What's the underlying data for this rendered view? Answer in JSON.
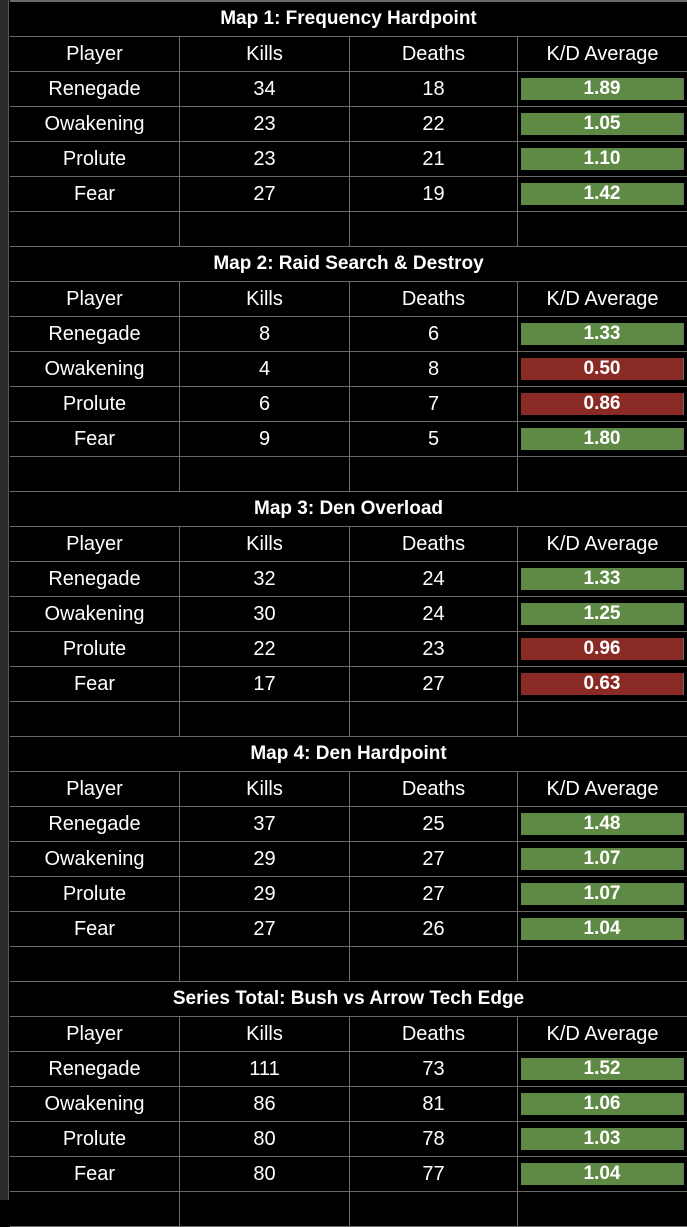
{
  "colors": {
    "good": "#5f8a45",
    "bad": "#8a2a24",
    "background": "#000000",
    "grid": "#6a6a6a"
  },
  "headers": {
    "player": "Player",
    "kills": "Kills",
    "deaths": "Deaths",
    "kd": "K/D Average"
  },
  "maps": [
    {
      "title": "Map 1: Frequency Hardpoint",
      "rows": [
        {
          "player": "Renegade",
          "kills": "34",
          "deaths": "18",
          "kd": "1.89",
          "status": "good"
        },
        {
          "player": "Owakening",
          "kills": "23",
          "deaths": "22",
          "kd": "1.05",
          "status": "good"
        },
        {
          "player": "Prolute",
          "kills": "23",
          "deaths": "21",
          "kd": "1.10",
          "status": "good"
        },
        {
          "player": "Fear",
          "kills": "27",
          "deaths": "19",
          "kd": "1.42",
          "status": "good"
        }
      ]
    },
    {
      "title": "Map 2: Raid Search & Destroy",
      "rows": [
        {
          "player": "Renegade",
          "kills": "8",
          "deaths": "6",
          "kd": "1.33",
          "status": "good"
        },
        {
          "player": "Owakening",
          "kills": "4",
          "deaths": "8",
          "kd": "0.50",
          "status": "bad"
        },
        {
          "player": "Prolute",
          "kills": "6",
          "deaths": "7",
          "kd": "0.86",
          "status": "bad"
        },
        {
          "player": "Fear",
          "kills": "9",
          "deaths": "5",
          "kd": "1.80",
          "status": "good"
        }
      ]
    },
    {
      "title": "Map 3: Den Overload",
      "rows": [
        {
          "player": "Renegade",
          "kills": "32",
          "deaths": "24",
          "kd": "1.33",
          "status": "good"
        },
        {
          "player": "Owakening",
          "kills": "30",
          "deaths": "24",
          "kd": "1.25",
          "status": "good"
        },
        {
          "player": "Prolute",
          "kills": "22",
          "deaths": "23",
          "kd": "0.96",
          "status": "bad"
        },
        {
          "player": "Fear",
          "kills": "17",
          "deaths": "27",
          "kd": "0.63",
          "status": "bad"
        }
      ]
    },
    {
      "title": "Map 4: Den Hardpoint",
      "rows": [
        {
          "player": "Renegade",
          "kills": "37",
          "deaths": "25",
          "kd": "1.48",
          "status": "good"
        },
        {
          "player": "Owakening",
          "kills": "29",
          "deaths": "27",
          "kd": "1.07",
          "status": "good"
        },
        {
          "player": "Prolute",
          "kills": "29",
          "deaths": "27",
          "kd": "1.07",
          "status": "good"
        },
        {
          "player": "Fear",
          "kills": "27",
          "deaths": "26",
          "kd": "1.04",
          "status": "good"
        }
      ]
    },
    {
      "title": "Series Total: Bush vs Arrow Tech Edge",
      "rows": [
        {
          "player": "Renegade",
          "kills": "111",
          "deaths": "73",
          "kd": "1.52",
          "status": "good"
        },
        {
          "player": "Owakening",
          "kills": "86",
          "deaths": "81",
          "kd": "1.06",
          "status": "good"
        },
        {
          "player": "Prolute",
          "kills": "80",
          "deaths": "78",
          "kd": "1.03",
          "status": "good"
        },
        {
          "player": "Fear",
          "kills": "80",
          "deaths": "77",
          "kd": "1.04",
          "status": "good"
        }
      ]
    }
  ]
}
